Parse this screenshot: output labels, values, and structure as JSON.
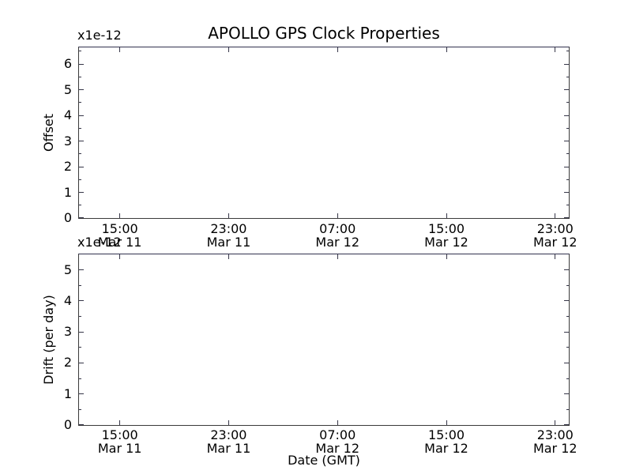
{
  "figure": {
    "title": "APOLLO GPS Clock Properties",
    "background_color": "#ffffff",
    "frame_color": "#3a3a3a",
    "text_color": "#000000"
  },
  "chart_data": [
    {
      "type": "line",
      "title": "APOLLO GPS Clock Properties",
      "offset_text": "x1e-12",
      "ylabel": "Offset",
      "xlabel": "",
      "ylim": [
        0,
        6.65
      ],
      "y_major_ticks": [
        0,
        1,
        2,
        3,
        4,
        5,
        6
      ],
      "y_minor_step": 0.5,
      "xlim_hours": [
        12,
        48
      ],
      "x_major_tick_hours": [
        15,
        23,
        31,
        39,
        47
      ],
      "x_tick_labels": [
        [
          "15:00",
          "Mar 11"
        ],
        [
          "23:00",
          "Mar 11"
        ],
        [
          "07:00",
          "Mar 12"
        ],
        [
          "15:00",
          "Mar 12"
        ],
        [
          "23:00",
          "Mar 12"
        ]
      ],
      "grid": false,
      "legend": null,
      "series": []
    },
    {
      "type": "line",
      "title": "",
      "offset_text": "x1e-12",
      "ylabel": "Drift (per day)",
      "xlabel": "Date (GMT)",
      "ylim": [
        0,
        5.5
      ],
      "y_major_ticks": [
        0,
        1,
        2,
        3,
        4,
        5
      ],
      "y_minor_step": 0.5,
      "xlim_hours": [
        12,
        48
      ],
      "x_major_tick_hours": [
        15,
        23,
        31,
        39,
        47
      ],
      "x_tick_labels": [
        [
          "15:00",
          "Mar 11"
        ],
        [
          "23:00",
          "Mar 11"
        ],
        [
          "07:00",
          "Mar 12"
        ],
        [
          "15:00",
          "Mar 12"
        ],
        [
          "23:00",
          "Mar 12"
        ]
      ],
      "grid": false,
      "legend": null,
      "series": []
    }
  ]
}
